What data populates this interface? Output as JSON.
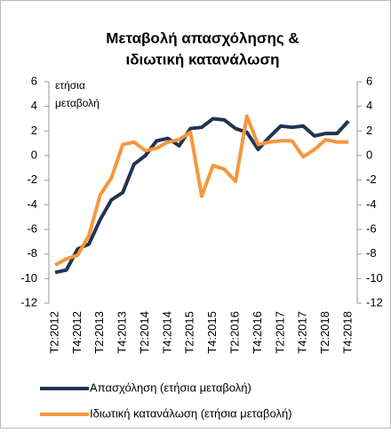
{
  "chart_data": {
    "type": "line",
    "title": [
      "Μεταβολή απασχόλησης &",
      "ιδιωτική κατανάλωση"
    ],
    "annotation": [
      "ετήσια",
      "μεταβολή"
    ],
    "categories": [
      "T2:2012",
      null,
      "T4:2012",
      null,
      "T2:2013",
      null,
      "T4:2013",
      null,
      "T2:2014",
      null,
      "T4:2014",
      null,
      "T2:2015",
      null,
      "T4:2015",
      null,
      "T2:2016",
      null,
      "T4:2016",
      null,
      "T2:2017",
      null,
      "T4:2017",
      null,
      "T2:2018",
      null,
      "T4:2018"
    ],
    "series": [
      {
        "name": "Απασχόληση (ετήσια μεταβολή)",
        "color": "#1f3552",
        "values": [
          -9.5,
          -9.3,
          -7.6,
          -7.2,
          -5.2,
          -3.6,
          -3.0,
          -0.7,
          0.0,
          1.2,
          1.4,
          0.8,
          2.2,
          2.3,
          3.0,
          2.9,
          2.2,
          1.9,
          0.5,
          1.5,
          2.4,
          2.3,
          2.4,
          1.6,
          1.8,
          1.8,
          2.8
        ]
      },
      {
        "name": "Ιδιωτική κατανάλωση (ετήσια μεταβολή)",
        "color": "#f7963c",
        "values": [
          -8.9,
          -8.4,
          -8.1,
          -6.5,
          -3.2,
          -1.8,
          0.9,
          1.1,
          0.4,
          0.6,
          1.1,
          1.3,
          1.9,
          -3.3,
          -0.8,
          -1.1,
          -2.1,
          3.2,
          0.9,
          1.1,
          1.2,
          1.2,
          -0.1,
          0.5,
          1.3,
          1.1,
          1.1
        ]
      }
    ],
    "ylim": [
      -12,
      6
    ],
    "yticks": [
      -12,
      -10,
      -8,
      -6,
      -4,
      -2,
      0,
      2,
      4,
      6
    ],
    "y2lim": [
      -12,
      6
    ],
    "y2ticks": [
      -12,
      -10,
      -8,
      -6,
      -4,
      -2,
      0,
      2,
      4,
      6
    ],
    "grid": false,
    "legend": "bottom"
  }
}
